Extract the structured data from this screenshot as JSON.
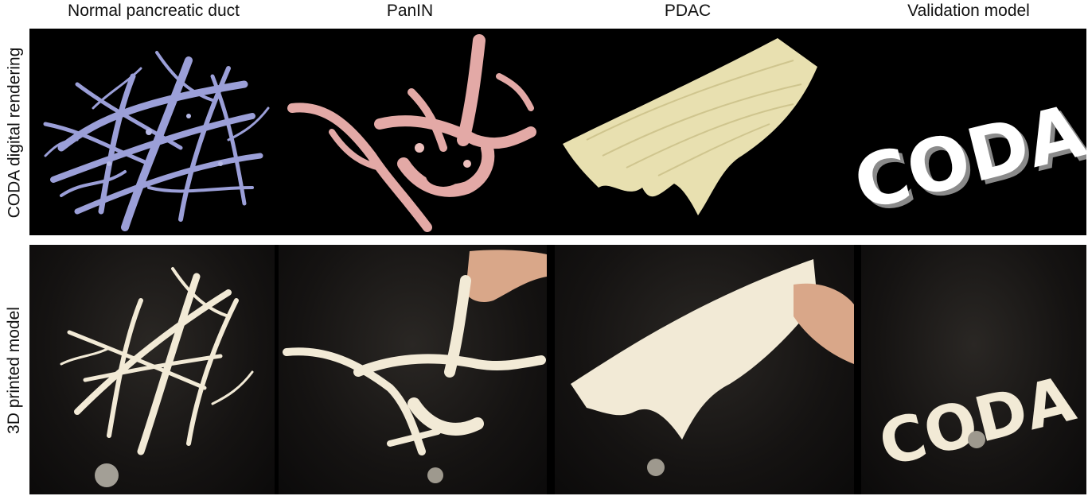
{
  "columns": [
    {
      "title": "Normal pancreatic duct"
    },
    {
      "title": "PanIN"
    },
    {
      "title": "PDAC"
    },
    {
      "title": "Validation model"
    }
  ],
  "rows": [
    {
      "label": "CODA digital rendering"
    },
    {
      "label": "3D printed model"
    }
  ],
  "logo_text": "CODA",
  "colors": {
    "normal_duct_render": "#9b9fd8",
    "panin_render": "#e3a9a6",
    "pdac_render": "#e8e0b0",
    "printed_material": "#f2ead6",
    "panel_background": "#000000"
  }
}
